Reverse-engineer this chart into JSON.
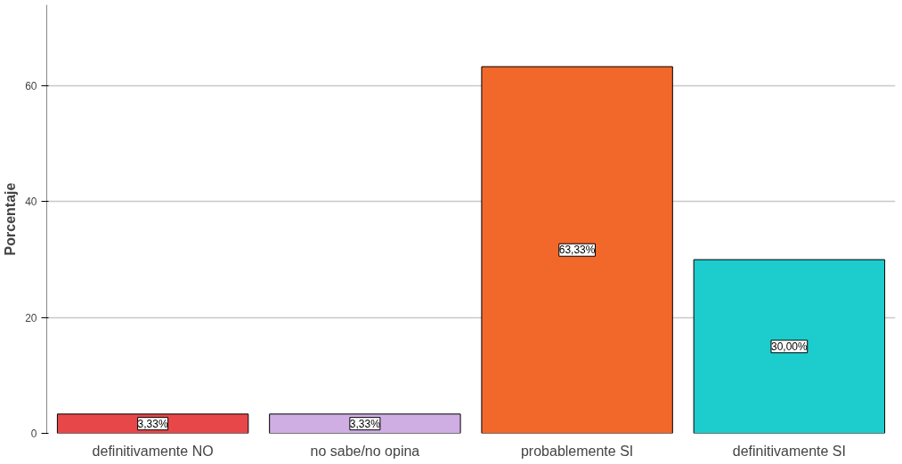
{
  "chart_data": {
    "type": "bar",
    "ylabel": "Porcentaje",
    "categories": [
      "definitivamente NO",
      "no sabe/no opina",
      "probablemente SI",
      "definitivamente SI"
    ],
    "values": [
      3.33,
      3.33,
      63.33,
      30.0
    ],
    "colors": [
      "#e8474a",
      "#cfaee3",
      "#f2672a",
      "#1dcccc"
    ],
    "value_labels": [
      "3,33%",
      "3,33%",
      "63,33%",
      "30,00%"
    ],
    "ylim": [
      0,
      74
    ],
    "yticks": [
      0,
      20,
      40,
      60
    ],
    "grid": "y"
  }
}
